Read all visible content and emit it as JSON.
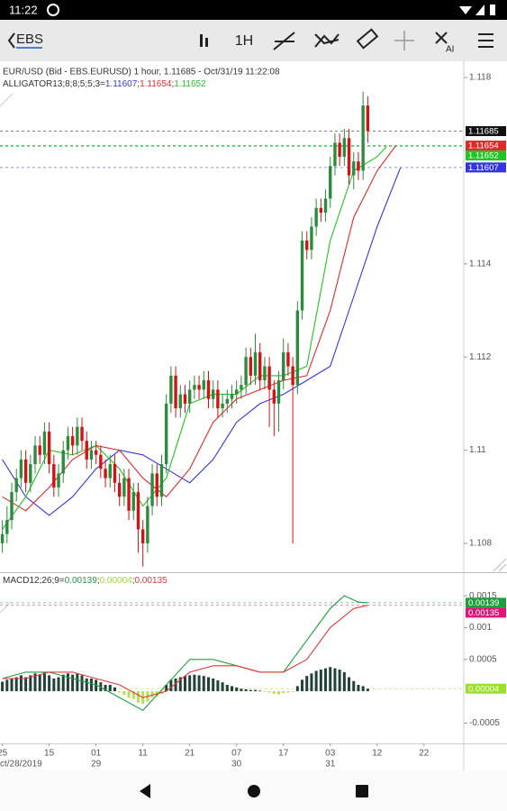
{
  "status_bar": {
    "time": "11:22"
  },
  "toolbar": {
    "symbol": "EBS",
    "timeframe": "1H",
    "ai": "AI"
  },
  "chart_data": [
    {
      "type": "candlestick",
      "header": "EUR/USD (Bid - EBS.EURUSD)  1 hour, 1.11685 - Oct/31/19 11:22:08",
      "indicator": "ALLIGATOR13;8;8;5;5;3=",
      "separator": ";",
      "up_color": "#2e8b3e",
      "down_color": "#d01414",
      "xlim": [
        -0.5,
        98.5
      ],
      "ylim": [
        1.10738,
        1.11835
      ],
      "yticks": [
        1.108,
        1.11,
        1.112,
        1.114,
        1.118
      ],
      "x": [
        0,
        1,
        2,
        3,
        4,
        5,
        6,
        7,
        8,
        9,
        10,
        11,
        12,
        13,
        14,
        15,
        16,
        17,
        18,
        19,
        20,
        21,
        22,
        23,
        24,
        25,
        26,
        27,
        28,
        29,
        30,
        31,
        32,
        33,
        34,
        35,
        36,
        37,
        38,
        39,
        40,
        41,
        42,
        43,
        44,
        45,
        46,
        47,
        48,
        49,
        50,
        51,
        52,
        53,
        54,
        55,
        56,
        57,
        58,
        59,
        60,
        61,
        62,
        63,
        64,
        65,
        66,
        67,
        68,
        69,
        70,
        71,
        72,
        73,
        74,
        75,
        76,
        77,
        78
      ],
      "ohlc": [
        [
          1.108,
          1.1085,
          1.1078,
          1.1082
        ],
        [
          1.1082,
          1.1088,
          1.108,
          1.1085
        ],
        [
          1.1085,
          1.1093,
          1.1083,
          1.1091
        ],
        [
          1.1091,
          1.1096,
          1.1089,
          1.1094
        ],
        [
          1.1094,
          1.11,
          1.1092,
          1.1098
        ],
        [
          1.1098,
          1.11,
          1.1091,
          1.1093
        ],
        [
          1.1093,
          1.1099,
          1.1091,
          1.1097
        ],
        [
          1.1097,
          1.1103,
          1.1095,
          1.1101
        ],
        [
          1.1101,
          1.1103,
          1.1097,
          1.1099
        ],
        [
          1.1099,
          1.1106,
          1.1097,
          1.1104
        ],
        [
          1.1104,
          1.1106,
          1.1095,
          1.1097
        ],
        [
          1.1097,
          1.1099,
          1.109,
          1.1092
        ],
        [
          1.1092,
          1.1097,
          1.109,
          1.1095
        ],
        [
          1.1095,
          1.1102,
          1.1093,
          1.11
        ],
        [
          1.11,
          1.1105,
          1.1098,
          1.1103
        ],
        [
          1.1103,
          1.1105,
          1.1099,
          1.1101
        ],
        [
          1.1101,
          1.1107,
          1.1099,
          1.1105
        ],
        [
          1.1105,
          1.1107,
          1.11,
          1.1102
        ],
        [
          1.1102,
          1.1104,
          1.1096,
          1.1098
        ],
        [
          1.1098,
          1.1102,
          1.1096,
          1.11
        ],
        [
          1.11,
          1.1102,
          1.1097,
          1.1099
        ],
        [
          1.1099,
          1.1101,
          1.1094,
          1.1096
        ],
        [
          1.1096,
          1.1098,
          1.1092,
          1.1094
        ],
        [
          1.1094,
          1.1099,
          1.1092,
          1.1097
        ],
        [
          1.1097,
          1.1099,
          1.1091,
          1.1093
        ],
        [
          1.1093,
          1.1095,
          1.1088,
          1.109
        ],
        [
          1.109,
          1.1096,
          1.1088,
          1.1094
        ],
        [
          1.1094,
          1.1096,
          1.1085,
          1.1087
        ],
        [
          1.1087,
          1.1093,
          1.1085,
          1.1091
        ],
        [
          1.1091,
          1.1093,
          1.1078,
          1.1083
        ],
        [
          1.1083,
          1.1085,
          1.1075,
          1.108
        ],
        [
          1.108,
          1.109,
          1.1078,
          1.1088
        ],
        [
          1.1088,
          1.1097,
          1.1086,
          1.1095
        ],
        [
          1.1095,
          1.1097,
          1.1088,
          1.109
        ],
        [
          1.109,
          1.1099,
          1.1088,
          1.1097
        ],
        [
          1.1097,
          1.1112,
          1.1095,
          1.111
        ],
        [
          1.111,
          1.1118,
          1.1108,
          1.1116
        ],
        [
          1.1116,
          1.1118,
          1.1107,
          1.1109
        ],
        [
          1.1109,
          1.1114,
          1.1107,
          1.1112
        ],
        [
          1.1112,
          1.1114,
          1.1108,
          1.111
        ],
        [
          1.111,
          1.1115,
          1.1108,
          1.1113
        ],
        [
          1.1113,
          1.1116,
          1.1111,
          1.1114
        ],
        [
          1.1114,
          1.1116,
          1.1111,
          1.1113
        ],
        [
          1.1113,
          1.1117,
          1.1111,
          1.1115
        ],
        [
          1.1115,
          1.1117,
          1.1109,
          1.1111
        ],
        [
          1.1111,
          1.1115,
          1.1109,
          1.1113
        ],
        [
          1.1113,
          1.1115,
          1.1107,
          1.1109
        ],
        [
          1.1109,
          1.1112,
          1.1107,
          1.111
        ],
        [
          1.111,
          1.1113,
          1.1108,
          1.1111
        ],
        [
          1.1111,
          1.1114,
          1.1109,
          1.1112
        ],
        [
          1.1112,
          1.1115,
          1.111,
          1.1113
        ],
        [
          1.1113,
          1.1116,
          1.1111,
          1.1114
        ],
        [
          1.1114,
          1.1122,
          1.1112,
          1.112
        ],
        [
          1.112,
          1.1122,
          1.1114,
          1.1116
        ],
        [
          1.1116,
          1.1125,
          1.1114,
          1.1121
        ],
        [
          1.1121,
          1.1123,
          1.1113,
          1.1115
        ],
        [
          1.1115,
          1.112,
          1.1113,
          1.1118
        ],
        [
          1.1118,
          1.112,
          1.1105,
          1.1113
        ],
        [
          1.1113,
          1.1115,
          1.1103,
          1.111
        ],
        [
          1.111,
          1.1117,
          1.1104,
          1.1115
        ],
        [
          1.1115,
          1.1124,
          1.1113,
          1.1121
        ],
        [
          1.1121,
          1.1123,
          1.1116,
          1.1118
        ],
        [
          1.1118,
          1.112,
          1.108,
          1.1114
        ],
        [
          1.1114,
          1.1132,
          1.1112,
          1.113
        ],
        [
          1.113,
          1.1147,
          1.1128,
          1.1145
        ],
        [
          1.1145,
          1.1147,
          1.1141,
          1.1143
        ],
        [
          1.1143,
          1.115,
          1.1141,
          1.1148
        ],
        [
          1.1148,
          1.1154,
          1.1146,
          1.1152
        ],
        [
          1.1152,
          1.1154,
          1.1149,
          1.1151
        ],
        [
          1.1151,
          1.1156,
          1.1149,
          1.1154
        ],
        [
          1.1154,
          1.1163,
          1.1152,
          1.1161
        ],
        [
          1.1161,
          1.1168,
          1.1159,
          1.1166
        ],
        [
          1.1166,
          1.1168,
          1.1161,
          1.1163
        ],
        [
          1.1163,
          1.1169,
          1.1161,
          1.1167
        ],
        [
          1.1167,
          1.1169,
          1.1157,
          1.1159
        ],
        [
          1.1159,
          1.1164,
          1.1156,
          1.1162
        ],
        [
          1.1162,
          1.1164,
          1.1158,
          1.116
        ],
        [
          1.116,
          1.1177,
          1.1158,
          1.1174
        ],
        [
          1.1174,
          1.1176,
          1.1166,
          1.11685
        ]
      ],
      "series": [
        {
          "color": "#3535e0",
          "x": [
            0,
            5,
            10,
            15,
            20,
            25,
            30,
            35,
            40,
            45,
            50,
            55,
            60,
            65,
            70,
            75,
            80,
            85
          ],
          "values": [
            1.1098,
            1.109,
            1.1086,
            1.109,
            1.1096,
            1.11,
            1.1099,
            1.1096,
            1.1093,
            1.1098,
            1.1106,
            1.111,
            1.1112,
            1.1115,
            1.1118,
            1.1133,
            1.1148,
            1.11607
          ]
        },
        {
          "color": "#e02a2a",
          "x": [
            0,
            5,
            10,
            15,
            20,
            25,
            30,
            35,
            40,
            45,
            50,
            55,
            60,
            65,
            70,
            75,
            80,
            84
          ],
          "values": [
            1.109,
            1.1087,
            1.1092,
            1.1098,
            1.1101,
            1.11,
            1.1094,
            1.109,
            1.1096,
            1.1106,
            1.1111,
            1.1113,
            1.1115,
            1.1116,
            1.113,
            1.115,
            1.116,
            1.11654
          ]
        },
        {
          "color": "#22c322",
          "x": [
            0,
            5,
            10,
            15,
            20,
            25,
            30,
            35,
            40,
            45,
            50,
            55,
            60,
            65,
            70,
            75,
            80,
            82
          ],
          "values": [
            1.1083,
            1.109,
            1.11,
            1.1099,
            1.1101,
            1.1096,
            1.1088,
            1.1094,
            1.111,
            1.1112,
            1.1112,
            1.1116,
            1.1116,
            1.1118,
            1.1145,
            1.116,
            1.1163,
            1.11652
          ]
        }
      ],
      "price_markers": [
        {
          "value": 1.11685,
          "color": "#111111"
        },
        {
          "value": 1.11654,
          "color": "#e02a2a"
        },
        {
          "value": 1.11652,
          "color": "#22c322"
        },
        {
          "value": 1.11607,
          "color": "#3535e0"
        }
      ],
      "legend_markers": [
        {
          "value": 1.11607,
          "color": "#3535e0"
        },
        {
          "value": 1.11654,
          "color": "#e02a2a"
        },
        {
          "value": 1.11652,
          "color": "#22c322"
        }
      ]
    },
    {
      "type": "macd",
      "indicator": "MACD12;26;9=",
      "separator": ";",
      "xlim": [
        -0.5,
        98.5
      ],
      "ylim": [
        -0.00082,
        0.00187
      ],
      "yticks": [
        -0.0005,
        0.0005,
        0.001,
        0.0015
      ],
      "xticks": [
        {
          "value": 0,
          "label": "25"
        },
        {
          "value": 10,
          "label": "15"
        },
        {
          "value": 20,
          "label": "01"
        },
        {
          "value": 30,
          "label": "11"
        },
        {
          "value": 40,
          "label": "21"
        },
        {
          "value": 50,
          "label": "07"
        },
        {
          "value": 60,
          "label": "17"
        },
        {
          "value": 70,
          "label": "03"
        },
        {
          "value": 80,
          "label": "12"
        },
        {
          "value": 90,
          "label": "22"
        }
      ],
      "date_ticks": [
        {
          "value": 0,
          "label": "ct/28/2019"
        },
        {
          "value": 20,
          "label": "29"
        },
        {
          "value": 50,
          "label": "30"
        },
        {
          "value": 70,
          "label": "31"
        }
      ],
      "hist_up_color": "#22413a",
      "hist_down_color": "#b6df4a",
      "x": [
        0,
        1,
        2,
        3,
        4,
        5,
        6,
        7,
        8,
        9,
        10,
        11,
        12,
        13,
        14,
        15,
        16,
        17,
        18,
        19,
        20,
        21,
        22,
        23,
        24,
        25,
        26,
        27,
        28,
        29,
        30,
        31,
        32,
        33,
        34,
        35,
        36,
        37,
        38,
        39,
        40,
        41,
        42,
        43,
        44,
        45,
        46,
        47,
        48,
        49,
        50,
        51,
        52,
        53,
        54,
        55,
        56,
        57,
        58,
        59,
        60,
        61,
        62,
        63,
        64,
        65,
        66,
        67,
        68,
        69,
        70,
        71,
        72,
        73,
        74,
        75,
        76,
        77,
        78
      ],
      "histogram": [
        0.00015,
        0.00018,
        0.0002,
        0.00022,
        0.00025,
        0.00022,
        0.00025,
        0.00028,
        0.00026,
        0.0003,
        0.00025,
        0.0002,
        0.00022,
        0.00026,
        0.00028,
        0.00026,
        0.00028,
        0.00025,
        0.0002,
        0.0002,
        0.00018,
        0.00014,
        0.0001,
        0.0001,
        6e-05,
        -2e-05,
        -6e-05,
        -0.0001,
        -0.00012,
        -0.00018,
        -0.0002,
        -0.00016,
        -0.0001,
        -8e-05,
        -4e-05,
        0.0001,
        0.00018,
        0.0002,
        0.00022,
        0.00024,
        0.00025,
        0.00026,
        0.00025,
        0.00024,
        0.00022,
        0.0002,
        0.00017,
        0.00014,
        0.0001,
        8e-05,
        6e-05,
        4e-05,
        3e-05,
        2e-05,
        2e-05,
        1e-05,
        -1e-05,
        -2e-05,
        -4e-05,
        -5e-05,
        -3e-05,
        -2e-05,
        -1e-05,
        8e-05,
        0.00018,
        0.00024,
        0.00028,
        0.00032,
        0.00034,
        0.00036,
        0.00038,
        0.00036,
        0.00034,
        0.0003,
        0.00022,
        0.00016,
        0.0001,
        8e-05,
        4e-05
      ],
      "series": [
        {
          "color": "#1f9e3c",
          "x": [
            0,
            5,
            10,
            15,
            20,
            25,
            30,
            35,
            40,
            45,
            50,
            55,
            60,
            65,
            70,
            73,
            76,
            78
          ],
          "values": [
            0.0002,
            0.0003,
            0.0003,
            0.0002,
            0.0001,
            -0.0001,
            -0.0003,
            0.0001,
            0.0005,
            0.0005,
            0.0004,
            0.0003,
            0.0003,
            0.0008,
            0.0013,
            0.0015,
            0.0014,
            0.00139
          ]
        },
        {
          "color": "#e03a3a",
          "x": [
            0,
            5,
            10,
            15,
            20,
            25,
            30,
            35,
            40,
            45,
            50,
            55,
            60,
            65,
            70,
            75,
            78
          ],
          "values": [
            0.0002,
            0.0002,
            0.0003,
            0.0003,
            0.0002,
            0.0001,
            -0.0001,
            0,
            0.0003,
            0.0004,
            0.0004,
            0.0003,
            0.0003,
            0.0005,
            0.001,
            0.0013,
            0.00135
          ]
        }
      ],
      "price_markers": [
        {
          "value": 0.00139,
          "color": "#1f9e3c"
        },
        {
          "value": 4e-05,
          "color": "#9be028"
        },
        {
          "value": 0.00135,
          "color": "#e0157a"
        }
      ],
      "legend_markers": [
        {
          "value": 0.00139,
          "color": "#1f9e3c"
        },
        {
          "value": 4e-05,
          "color": "#9be028"
        },
        {
          "value": 0.00135,
          "color": "#e03a3a"
        }
      ]
    }
  ]
}
